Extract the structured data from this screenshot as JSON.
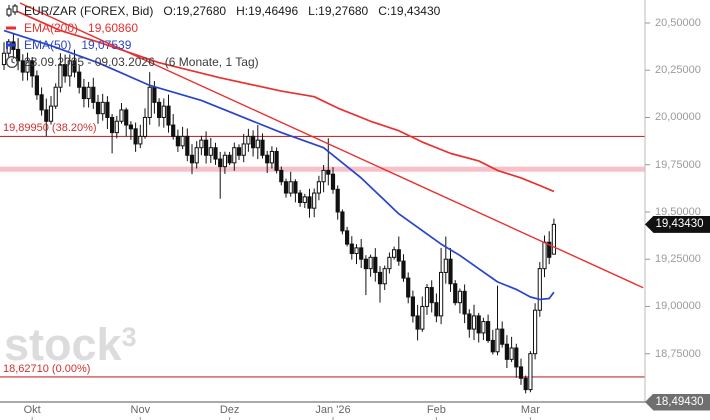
{
  "header": {
    "symbol": "EUR/ZAR (FOREX, Bid)",
    "items": [
      {
        "label": "O:",
        "value": "19,27680"
      },
      {
        "label": "H:",
        "value": "19,46496"
      },
      {
        "label": "L:",
        "value": "19,27680"
      },
      {
        "label": "C:",
        "value": "19,43430"
      }
    ],
    "ema200_name": "EMA(200)",
    "ema200_value": "19,60860",
    "ema50_name": "EMA(50)",
    "ema50_value": "19,07539",
    "date_range": "23.09.2025 - 09.03.2026",
    "period": "(6 Monate, 1 Tag)"
  },
  "watermark": {
    "text": "stock",
    "sup": "3"
  },
  "badges": {
    "current": "19,43430",
    "axis_min": "18,49430"
  },
  "colors": {
    "candle_stroke": "#111111",
    "candle_up_fill": "#ffffff",
    "candle_down_fill": "#111111",
    "ema200": "#e8312f",
    "ema50": "#2944cc",
    "trendline": "#e8312f",
    "fib_line": "#c23232",
    "fib_label": "#d23030",
    "zone": "#f6b6c0",
    "axis_line": "#555555",
    "axis_vline": "#bbbbbb",
    "tick": "#999999",
    "badge_current_bg": "#111111",
    "badge_min_bg": "#6f6f6f",
    "y_label_text": "#9b9b9b",
    "x_label_text": "#666666",
    "watermark": "#dcdcdc"
  },
  "chart_data": {
    "type": "candlestick",
    "title": "EUR/ZAR (FOREX, Bid)",
    "interval": "1 Tag",
    "span": "6 Monate",
    "date_range": "23.09.2025 - 09.03.2026",
    "last_ohlc": {
      "open": 19.2768,
      "high": 19.46496,
      "low": 19.2768,
      "close": 19.4343
    },
    "indicators": {
      "ema200_current": 19.6086,
      "ema50_current": 19.07539
    },
    "y_axis": {
      "top_value": 20.5,
      "bottom_value": 18.4943,
      "ticks": [
        20.5,
        20.25,
        20.0,
        19.75,
        19.5,
        19.25,
        19.0,
        18.75
      ],
      "tick_labels": [
        "20,50000",
        "20,25000",
        "20,00000",
        "19,75000",
        "19,50000",
        "19,25000",
        "19,00000",
        "18,75000"
      ],
      "current_price": 19.4343,
      "axis_min": 18.4943
    },
    "x_axis": {
      "months": [
        {
          "label": "Okt",
          "day": 6
        },
        {
          "label": "Nov",
          "day": 29
        },
        {
          "label": "Dez",
          "day": 48
        },
        {
          "label": "Jan '26",
          "day": 70
        },
        {
          "label": "Feb",
          "day": 92
        },
        {
          "label": "Mar",
          "day": 112
        }
      ],
      "num_days": 118
    },
    "candles": {
      "first_open": 20.28,
      "closes": [
        20.34,
        20.4,
        20.36,
        20.3,
        20.24,
        20.3,
        20.22,
        20.12,
        20.04,
        19.98,
        20.06,
        20.16,
        20.28,
        20.22,
        20.3,
        20.24,
        20.16,
        20.1,
        20.16,
        20.08,
        20.02,
        20.08,
        20.0,
        19.92,
        19.98,
        20.04,
        19.96,
        19.94,
        19.86,
        19.9,
        20.0,
        20.16,
        20.08,
        20.0,
        20.06,
        19.96,
        19.9,
        19.85,
        19.9,
        19.8,
        19.76,
        19.84,
        19.88,
        19.8,
        19.84,
        19.78,
        19.74,
        19.8,
        19.76,
        19.84,
        19.8,
        19.86,
        19.9,
        19.84,
        19.88,
        19.8,
        19.76,
        19.82,
        19.72,
        19.66,
        19.6,
        19.66,
        19.6,
        19.55,
        19.58,
        19.52,
        19.6,
        19.66,
        19.72,
        19.7,
        19.62,
        19.5,
        19.4,
        19.33,
        19.28,
        19.31,
        19.25,
        19.2,
        19.26,
        19.18,
        19.12,
        19.2,
        19.26,
        19.3,
        19.24,
        19.15,
        19.05,
        18.95,
        18.88,
        19.0,
        19.1,
        19.02,
        18.95,
        19.18,
        19.25,
        19.12,
        19.02,
        19.08,
        18.96,
        18.88,
        18.95,
        18.86,
        18.92,
        18.82,
        18.76,
        18.88,
        18.8,
        18.72,
        18.78,
        18.68,
        18.62,
        18.56,
        18.75,
        18.98,
        19.2,
        19.34,
        19.26,
        19.4343
      ],
      "wick_overrides": {
        "3": {
          "h": 20.42
        },
        "9": {
          "l": 19.9
        },
        "12": {
          "h": 20.34
        },
        "23": {
          "l": 19.81
        },
        "31": {
          "h": 20.24
        },
        "40": {
          "l": 19.7
        },
        "46": {
          "l": 19.57
        },
        "54": {
          "h": 19.96
        },
        "65": {
          "l": 19.47
        },
        "69": {
          "h": 19.89
        },
        "77": {
          "l": 19.06
        },
        "80": {
          "l": 19.02
        },
        "84": {
          "h": 19.37
        },
        "88": {
          "l": 18.82
        },
        "93": {
          "h": 19.31
        },
        "94": {
          "h": 19.37
        },
        "105": {
          "h": 19.11
        },
        "111": {
          "l": 18.54
        },
        "117": {
          "o": 19.2768,
          "h": 19.46496,
          "l": 19.2768
        }
      }
    },
    "overlays": {
      "ema200": {
        "name": "EMA(200)",
        "value_label": "19,60860",
        "points": [
          [
            2,
            20.57
          ],
          [
            12,
            20.46
          ],
          [
            20,
            20.4
          ],
          [
            33,
            20.29
          ],
          [
            46,
            20.21
          ],
          [
            59,
            20.14
          ],
          [
            66,
            20.11
          ],
          [
            71,
            20.05
          ],
          [
            78,
            19.98
          ],
          [
            84,
            19.93
          ],
          [
            89,
            19.87
          ],
          [
            95,
            19.81
          ],
          [
            101,
            19.77
          ],
          [
            105,
            19.72
          ],
          [
            110,
            19.68
          ],
          [
            114,
            19.64
          ],
          [
            117,
            19.6086
          ]
        ]
      },
      "ema50": {
        "name": "EMA(50)",
        "value_label": "19,07539",
        "points": [
          [
            0,
            20.46
          ],
          [
            10,
            20.38
          ],
          [
            20,
            20.29
          ],
          [
            31,
            20.17
          ],
          [
            42,
            20.09
          ],
          [
            49,
            20.02
          ],
          [
            59,
            19.92
          ],
          [
            68,
            19.84
          ],
          [
            76,
            19.68
          ],
          [
            84,
            19.49
          ],
          [
            93,
            19.33
          ],
          [
            97,
            19.27
          ],
          [
            101,
            19.2
          ],
          [
            105,
            19.13
          ],
          [
            109,
            19.09
          ],
          [
            112,
            19.05
          ],
          [
            114,
            19.037
          ],
          [
            116,
            19.042
          ],
          [
            117,
            19.0754
          ]
        ]
      },
      "trendline": {
        "x1_day": 3.4,
        "v1": 20.606,
        "x2_day": 136,
        "v2": 19.099
      },
      "fib_levels": [
        {
          "value": 19.8995,
          "label": "19,89950 (38.20%)"
        },
        {
          "value": 18.6271,
          "label": "18,62710 (0.00%)"
        }
      ],
      "zone": {
        "from": 19.74,
        "to": 19.713
      }
    }
  }
}
